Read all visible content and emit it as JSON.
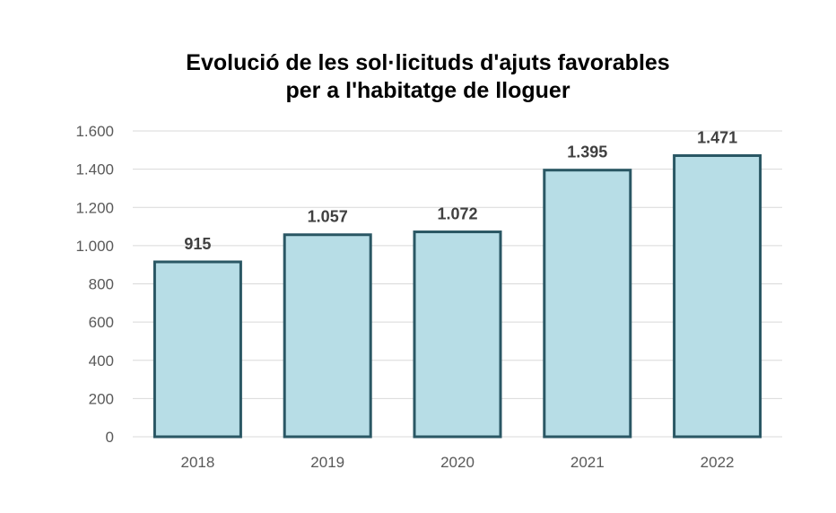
{
  "chart_data": {
    "type": "bar",
    "title_lines": [
      "Evolució de les sol·licituds d'ajuts favorables",
      "per a l'habitatge de lloguer"
    ],
    "categories": [
      "2018",
      "2019",
      "2020",
      "2021",
      "2022"
    ],
    "values": [
      915,
      1057,
      1072,
      1395,
      1471
    ],
    "value_labels": [
      "915",
      "1.057",
      "1.072",
      "1.395",
      "1.471"
    ],
    "y_ticks": [
      0,
      200,
      400,
      600,
      800,
      1000,
      1200,
      1400,
      1600
    ],
    "y_tick_labels": [
      "0",
      "200",
      "400",
      "600",
      "800",
      "1.000",
      "1.200",
      "1.400",
      "1.600"
    ],
    "ylim": [
      0,
      1600
    ],
    "xlabel": "",
    "ylabel": "",
    "grid": true,
    "legend": "none",
    "colors": {
      "bar_fill": "#b7dde6",
      "bar_stroke": "#2a5764",
      "grid": "#d9d9d9"
    }
  }
}
